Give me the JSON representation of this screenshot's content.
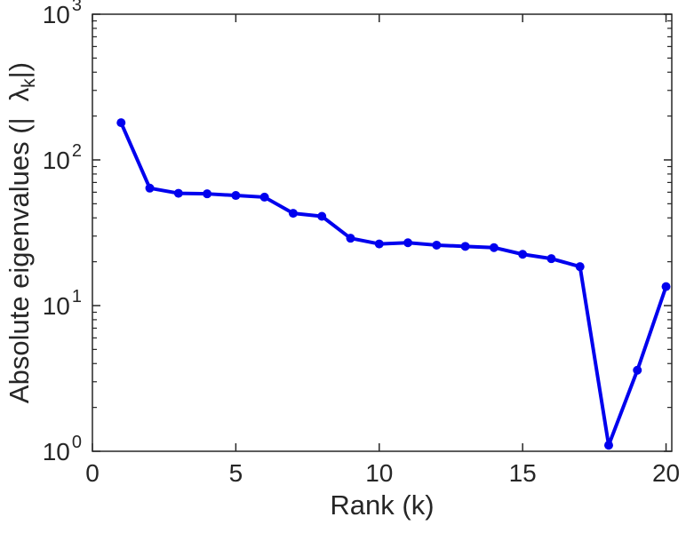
{
  "chart_data": {
    "type": "line",
    "series_name": "absolute-eigenvalues",
    "title": "",
    "xlabel": "Rank (k)",
    "ylabel_parts": {
      "prefix": "Absolute eigenvalues (|",
      "symbol": "λ",
      "subscript": "k",
      "suffix": "|)"
    },
    "x": [
      1,
      2,
      3,
      4,
      5,
      6,
      7,
      8,
      9,
      10,
      11,
      12,
      13,
      14,
      15,
      16,
      17,
      18,
      19,
      20
    ],
    "values": [
      180,
      64,
      59,
      58.5,
      57,
      55.5,
      43,
      41,
      29,
      26.5,
      27,
      26,
      25.5,
      25,
      22.5,
      21,
      18.5,
      1.1,
      3.6,
      13.5
    ],
    "x_ticks": [
      0,
      5,
      10,
      15,
      20
    ],
    "xlim": [
      0,
      20.2
    ],
    "y_scale": "log",
    "y_tick_exponents": [
      0,
      1,
      2,
      3
    ],
    "ylim_exponents": [
      0,
      3
    ],
    "grid": "off",
    "legend": "none",
    "line_color": "#0000ee",
    "axis_color": "#262626",
    "line_width": 4,
    "marker_size": 5
  }
}
